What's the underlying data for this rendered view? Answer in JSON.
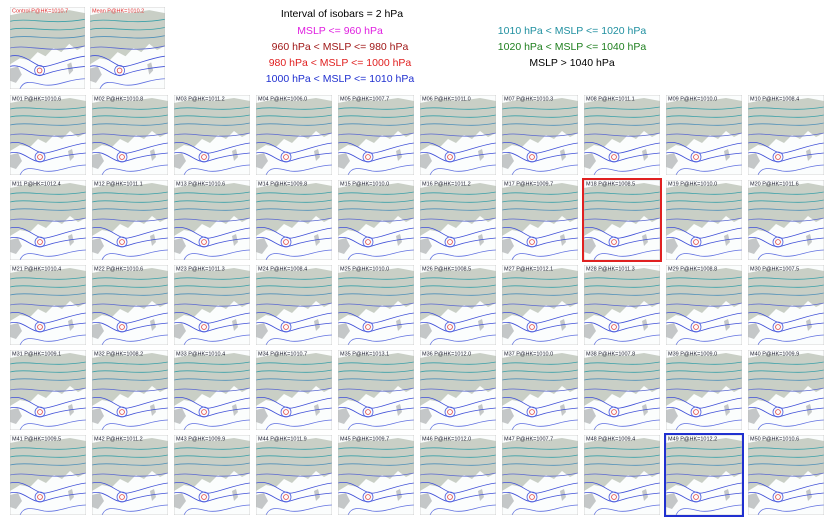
{
  "legend": {
    "interval": "Interval of isobars = 2 hPa",
    "classes": [
      {
        "text": "MSLP <= 960 hPa",
        "color": "#e020e0"
      },
      {
        "text": "960 hPa < MSLP <= 980 hPa",
        "color": "#a01818"
      },
      {
        "text": "980 hPa < MSLP <= 1000 hPa",
        "color": "#e02020"
      },
      {
        "text": "1000 hPa < MSLP <= 1010 hPa",
        "color": "#2030d0"
      },
      {
        "text": "1010 hPa < MSLP <= 1020 hPa",
        "color": "#2090a0"
      },
      {
        "text": "1020 hPa < MSLP <= 1040 hPa",
        "color": "#208020"
      },
      {
        "text": "MSLP > 1040 hPa",
        "color": "#000000"
      }
    ]
  },
  "top_panels": [
    {
      "label": "Control P@HK=1010.7"
    },
    {
      "label": "Mean P@HK=1010.2"
    }
  ],
  "panels": [
    {
      "label": "M01 P@HK=1010.6"
    },
    {
      "label": "M02 P@HK=1010.8"
    },
    {
      "label": "M03 P@HK=1011.2"
    },
    {
      "label": "M04 P@HK=1006.0"
    },
    {
      "label": "M05 P@HK=1007.7"
    },
    {
      "label": "M06 P@HK=1011.0"
    },
    {
      "label": "M07 P@HK=1010.3"
    },
    {
      "label": "M08 P@HK=1011.1"
    },
    {
      "label": "M09 P@HK=1010.0"
    },
    {
      "label": "M10 P@HK=1008.4"
    },
    {
      "label": "M11 P@HK=1012.4"
    },
    {
      "label": "M12 P@HK=1011.1"
    },
    {
      "label": "M13 P@HK=1010.6"
    },
    {
      "label": "M14 P@HK=1009.8"
    },
    {
      "label": "M15 P@HK=1010.0"
    },
    {
      "label": "M16 P@HK=1011.2"
    },
    {
      "label": "M17 P@HK=1009.7"
    },
    {
      "label": "M18 P@HK=1008.5",
      "border": "#e02020"
    },
    {
      "label": "M19 P@HK=1010.0"
    },
    {
      "label": "M20 P@HK=1011.6"
    },
    {
      "label": "M21 P@HK=1010.4"
    },
    {
      "label": "M22 P@HK=1010.6"
    },
    {
      "label": "M23 P@HK=1011.3"
    },
    {
      "label": "M24 P@HK=1008.4"
    },
    {
      "label": "M25 P@HK=1010.0"
    },
    {
      "label": "M26 P@HK=1008.5"
    },
    {
      "label": "M27 P@HK=1012.1"
    },
    {
      "label": "M28 P@HK=1011.3"
    },
    {
      "label": "M29 P@HK=1008.8"
    },
    {
      "label": "M30 P@HK=1007.5"
    },
    {
      "label": "M31 P@HK=1009.1"
    },
    {
      "label": "M32 P@HK=1008.2"
    },
    {
      "label": "M33 P@HK=1010.4"
    },
    {
      "label": "M34 P@HK=1010.7"
    },
    {
      "label": "M35 P@HK=1013.1"
    },
    {
      "label": "M36 P@HK=1012.0"
    },
    {
      "label": "M37 P@HK=1010.0"
    },
    {
      "label": "M38 P@HK=1007.8"
    },
    {
      "label": "M39 P@HK=1009.0"
    },
    {
      "label": "M40 P@HK=1009.9"
    },
    {
      "label": "M41 P@HK=1009.5"
    },
    {
      "label": "M42 P@HK=1011.2"
    },
    {
      "label": "M43 P@HK=1009.9"
    },
    {
      "label": "M44 P@HK=1011.9"
    },
    {
      "label": "M45 P@HK=1009.7"
    },
    {
      "label": "M46 P@HK=1012.0"
    },
    {
      "label": "M47 P@HK=1007.7"
    },
    {
      "label": "M48 P@HK=1009.4"
    },
    {
      "label": "M49 P@HK=1012.2",
      "border": "#2030d0"
    },
    {
      "label": "M50 P@HK=1010.6"
    }
  ]
}
